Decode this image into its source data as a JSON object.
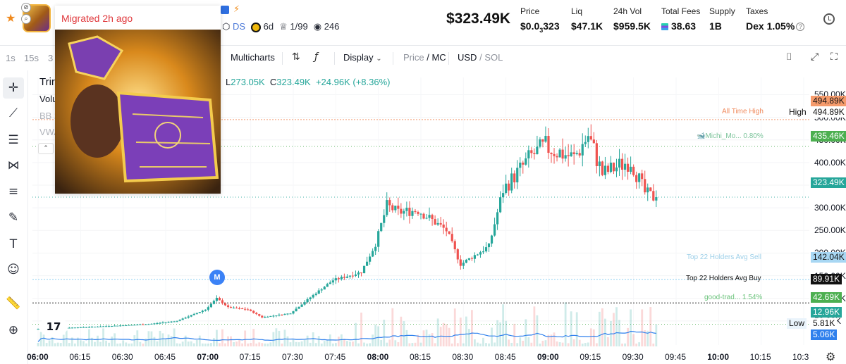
{
  "header": {
    "favorite_icon": "star-icon",
    "meta": {
      "ds_label": "DS",
      "age": "6d",
      "top_holders": "1/99",
      "views": "246"
    },
    "market_cap": "$323.49K",
    "stats": {
      "price_label": "Price",
      "price_prefix": "$0.0",
      "price_zeros": "3",
      "price_digits": "323",
      "liq_label": "Liq",
      "liq_value": "$47.1K",
      "vol_label": "24h Vol",
      "vol_value": "$959.5K",
      "fees_label": "Total Fees",
      "fees_value": "38.63",
      "supply_label": "Supply",
      "supply_value": "1B",
      "taxes_label": "Taxes",
      "taxes_value": "Dex 1.05%"
    }
  },
  "toolbar": {
    "intervals": [
      "1s",
      "15s",
      "3"
    ],
    "multicharts": "Multicharts",
    "display": "Display",
    "price_label": "Price",
    "mc_label": "MC",
    "usd_label": "USD",
    "sol_label": "SOL"
  },
  "popup": {
    "title": "Migrated 2h ago"
  },
  "chart_legend": {
    "symbol_fragment": "Trir",
    "volume_fragment": "Volu",
    "bb_fragment": "BB 2",
    "vwap_fragment": "VWA",
    "low_label": "L",
    "low_value": "273.05K",
    "close_label": "C",
    "close_value": "323.49K",
    "change": "+24.96K (+8.36%)"
  },
  "markers": {
    "migration_marker": "M"
  },
  "price_axis": {
    "ticks": [
      "550.00K",
      "500.00K",
      "450.00K",
      "400.00K",
      "350.00K",
      "300.00K",
      "250.00K",
      "200.00K",
      "150.00K",
      "100.00K",
      "50.00K"
    ],
    "labels": {
      "ath": "494.89K",
      "high": "494.89K",
      "michi": "435.46K",
      "current": "323.49K",
      "holders_sell": "142.04K",
      "holders_buy": "89.91K",
      "good_trad": "42.69K",
      "volume": "12.96K",
      "low": "5.81K",
      "vol_ma": "5.06K"
    },
    "text_labels": {
      "high": "High",
      "low": "Low"
    }
  },
  "line_annotations": {
    "ath": "All Time High",
    "michi": "Michi_Mo... 0.80%",
    "holders_sell": "Top 22 Holders Avg Sell",
    "holders_buy": "Top 22 Holders Avg Buy",
    "good_trad": "good-trad... 1.54%"
  },
  "time_axis": {
    "ticks": [
      "06:00",
      "06:15",
      "06:30",
      "06:45",
      "07:00",
      "07:15",
      "07:30",
      "07:45",
      "08:00",
      "08:15",
      "08:30",
      "08:45",
      "09:00",
      "09:15",
      "09:30",
      "09:45",
      "10:00",
      "10:15",
      "10:3"
    ]
  },
  "colors": {
    "up": "#26a69a",
    "down": "#ef5350",
    "ath": "#f08a5d",
    "current": "#26a69a",
    "holders_sell": "#7cc7ef",
    "holders_buy": "#000000",
    "good_trad": "#4caf50",
    "vol_ma": "#2f80ed"
  },
  "chart_data": {
    "type": "candlestick",
    "ylim": [
      0,
      560000
    ],
    "x_range": [
      "05:58",
      "10:32"
    ],
    "key_prices": {
      "all_time_high": 494890,
      "current_close": 323490,
      "low": 273050
    },
    "series": [
      {
        "name": "price_path",
        "x": [
          "06:00",
          "06:20",
          "06:40",
          "06:50",
          "07:00",
          "07:04",
          "07:08",
          "07:15",
          "07:20",
          "07:30",
          "07:38",
          "07:45",
          "07:55",
          "08:00",
          "08:04",
          "08:08",
          "08:15",
          "08:25",
          "08:30",
          "08:40",
          "08:45",
          "08:55",
          "09:00",
          "09:10",
          "09:15",
          "09:20",
          "09:30",
          "09:35",
          "09:38"
        ],
        "values": [
          32000,
          37000,
          43000,
          50000,
          75000,
          100000,
          80000,
          75000,
          58000,
          67000,
          107000,
          140000,
          158000,
          220000,
          305000,
          290000,
          295000,
          250000,
          175000,
          215000,
          340000,
          415000,
          435000,
          410000,
          460000,
          375000,
          405000,
          333000,
          323490
        ]
      }
    ]
  }
}
